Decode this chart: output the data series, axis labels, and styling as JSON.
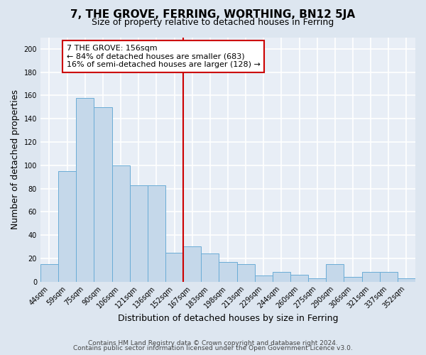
{
  "title": "7, THE GROVE, FERRING, WORTHING, BN12 5JA",
  "subtitle": "Size of property relative to detached houses in Ferring",
  "xlabel": "Distribution of detached houses by size in Ferring",
  "ylabel": "Number of detached properties",
  "categories": [
    "44sqm",
    "59sqm",
    "75sqm",
    "90sqm",
    "106sqm",
    "121sqm",
    "136sqm",
    "152sqm",
    "167sqm",
    "183sqm",
    "198sqm",
    "213sqm",
    "229sqm",
    "244sqm",
    "260sqm",
    "275sqm",
    "290sqm",
    "306sqm",
    "321sqm",
    "337sqm",
    "352sqm"
  ],
  "values": [
    15,
    95,
    158,
    150,
    100,
    83,
    83,
    25,
    30,
    24,
    17,
    15,
    5,
    8,
    6,
    3,
    15,
    4,
    8,
    8,
    3
  ],
  "bar_color": "#c5d8ea",
  "bar_edge_color": "#6aacd6",
  "bar_width": 1.0,
  "ylim": [
    0,
    210
  ],
  "yticks": [
    0,
    20,
    40,
    60,
    80,
    100,
    120,
    140,
    160,
    180,
    200
  ],
  "vline_index": 7,
  "vline_color": "#cc0000",
  "annotation_line1": "7 THE GROVE: 156sqm",
  "annotation_line2": "← 84% of detached houses are smaller (683)",
  "annotation_line3": "16% of semi-detached houses are larger (128) →",
  "annotation_box_color": "#ffffff",
  "annotation_box_edge_color": "#cc0000",
  "footer_line1": "Contains HM Land Registry data © Crown copyright and database right 2024.",
  "footer_line2": "Contains public sector information licensed under the Open Government Licence v3.0.",
  "background_color": "#dde6f0",
  "plot_bg_color": "#e8eef6",
  "grid_color": "#ffffff",
  "title_fontsize": 11,
  "subtitle_fontsize": 9,
  "tick_fontsize": 7,
  "label_fontsize": 9,
  "annotation_fontsize": 8,
  "footer_fontsize": 6.5
}
